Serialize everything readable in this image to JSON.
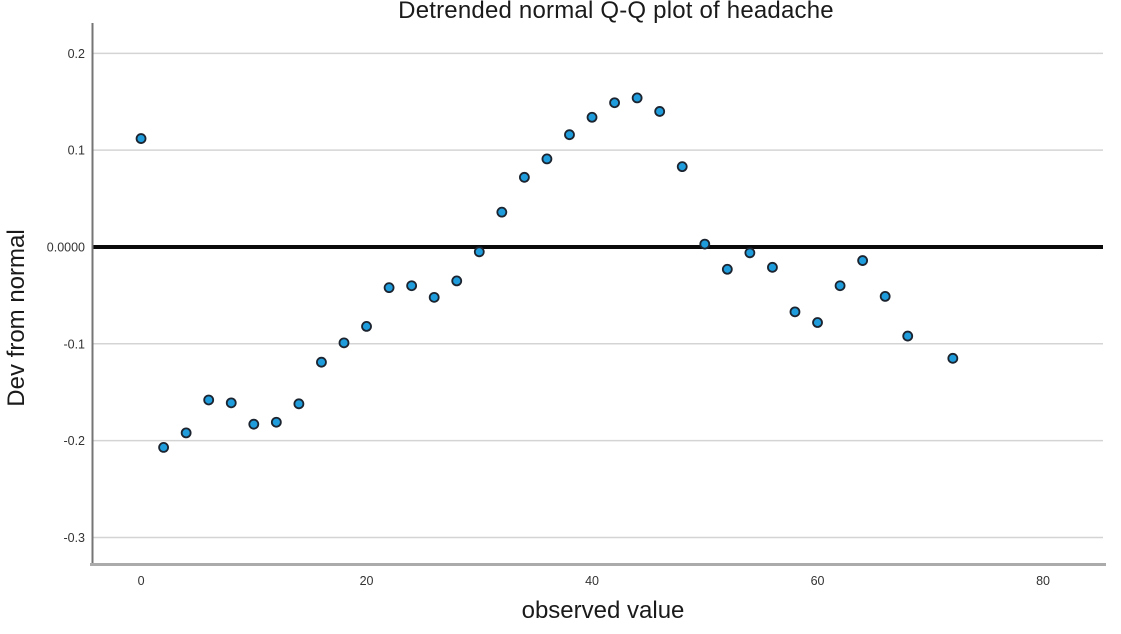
{
  "title": "Detrended normal Q-Q plot of headache",
  "x_axis": {
    "label": "observed value",
    "tick_labels": [
      "0",
      "20",
      "40",
      "60",
      "80"
    ]
  },
  "y_axis": {
    "label": "Dev from normal",
    "tick_labels": [
      "0.2",
      "0.1",
      "0.0000",
      "-0.1",
      "-0.2",
      "-0.3"
    ]
  },
  "chart_data": {
    "type": "scatter",
    "title": "Detrended normal Q-Q plot of headache",
    "xlabel": "observed value",
    "ylabel": "Dev from normal",
    "x": [
      0,
      2,
      4,
      6,
      8,
      10,
      12,
      14,
      16,
      18,
      20,
      22,
      24,
      26,
      28,
      30,
      32,
      34,
      36,
      38,
      40,
      42,
      44,
      46,
      48,
      50,
      52,
      54,
      56,
      58,
      60,
      62,
      64,
      66,
      68,
      72
    ],
    "y": [
      0.112,
      -0.207,
      -0.192,
      -0.158,
      -0.161,
      -0.183,
      -0.181,
      -0.162,
      -0.119,
      -0.099,
      -0.082,
      -0.042,
      -0.04,
      -0.052,
      -0.035,
      -0.005,
      0.036,
      0.072,
      0.091,
      0.116,
      0.134,
      0.149,
      0.154,
      0.14,
      0.083,
      0.003,
      -0.023,
      -0.006,
      -0.021,
      -0.067,
      -0.078,
      -0.04,
      -0.014,
      -0.051,
      -0.092,
      -0.115
    ],
    "x_ticks": [
      0,
      20,
      40,
      60,
      80
    ],
    "x_tick_labels": [
      "0",
      "20",
      "40",
      "60",
      "80"
    ],
    "y_ticks": [
      0.2,
      0.1,
      0,
      -0.1,
      -0.2,
      -0.3
    ],
    "y_tick_labels": [
      "0.2",
      "0.1",
      "0.0000",
      "-0.1",
      "-0.2",
      "-0.3"
    ],
    "xlim": [
      -4.35,
      85.32
    ],
    "ylim": [
      -0.3264,
      0.2293
    ],
    "grid": true,
    "legend": null,
    "reference_line_y": 0
  },
  "colors": {
    "background": "#ffffff",
    "point_fill": "#1e9cdb",
    "point_stroke": "#1c2430",
    "zero_line": "#0a0a0a",
    "gridline": "#d4d4d4",
    "left_axis": "#757575",
    "bottom_axis": "#ababab",
    "tick_text": "#333333",
    "label_text": "#1a1a1a"
  }
}
